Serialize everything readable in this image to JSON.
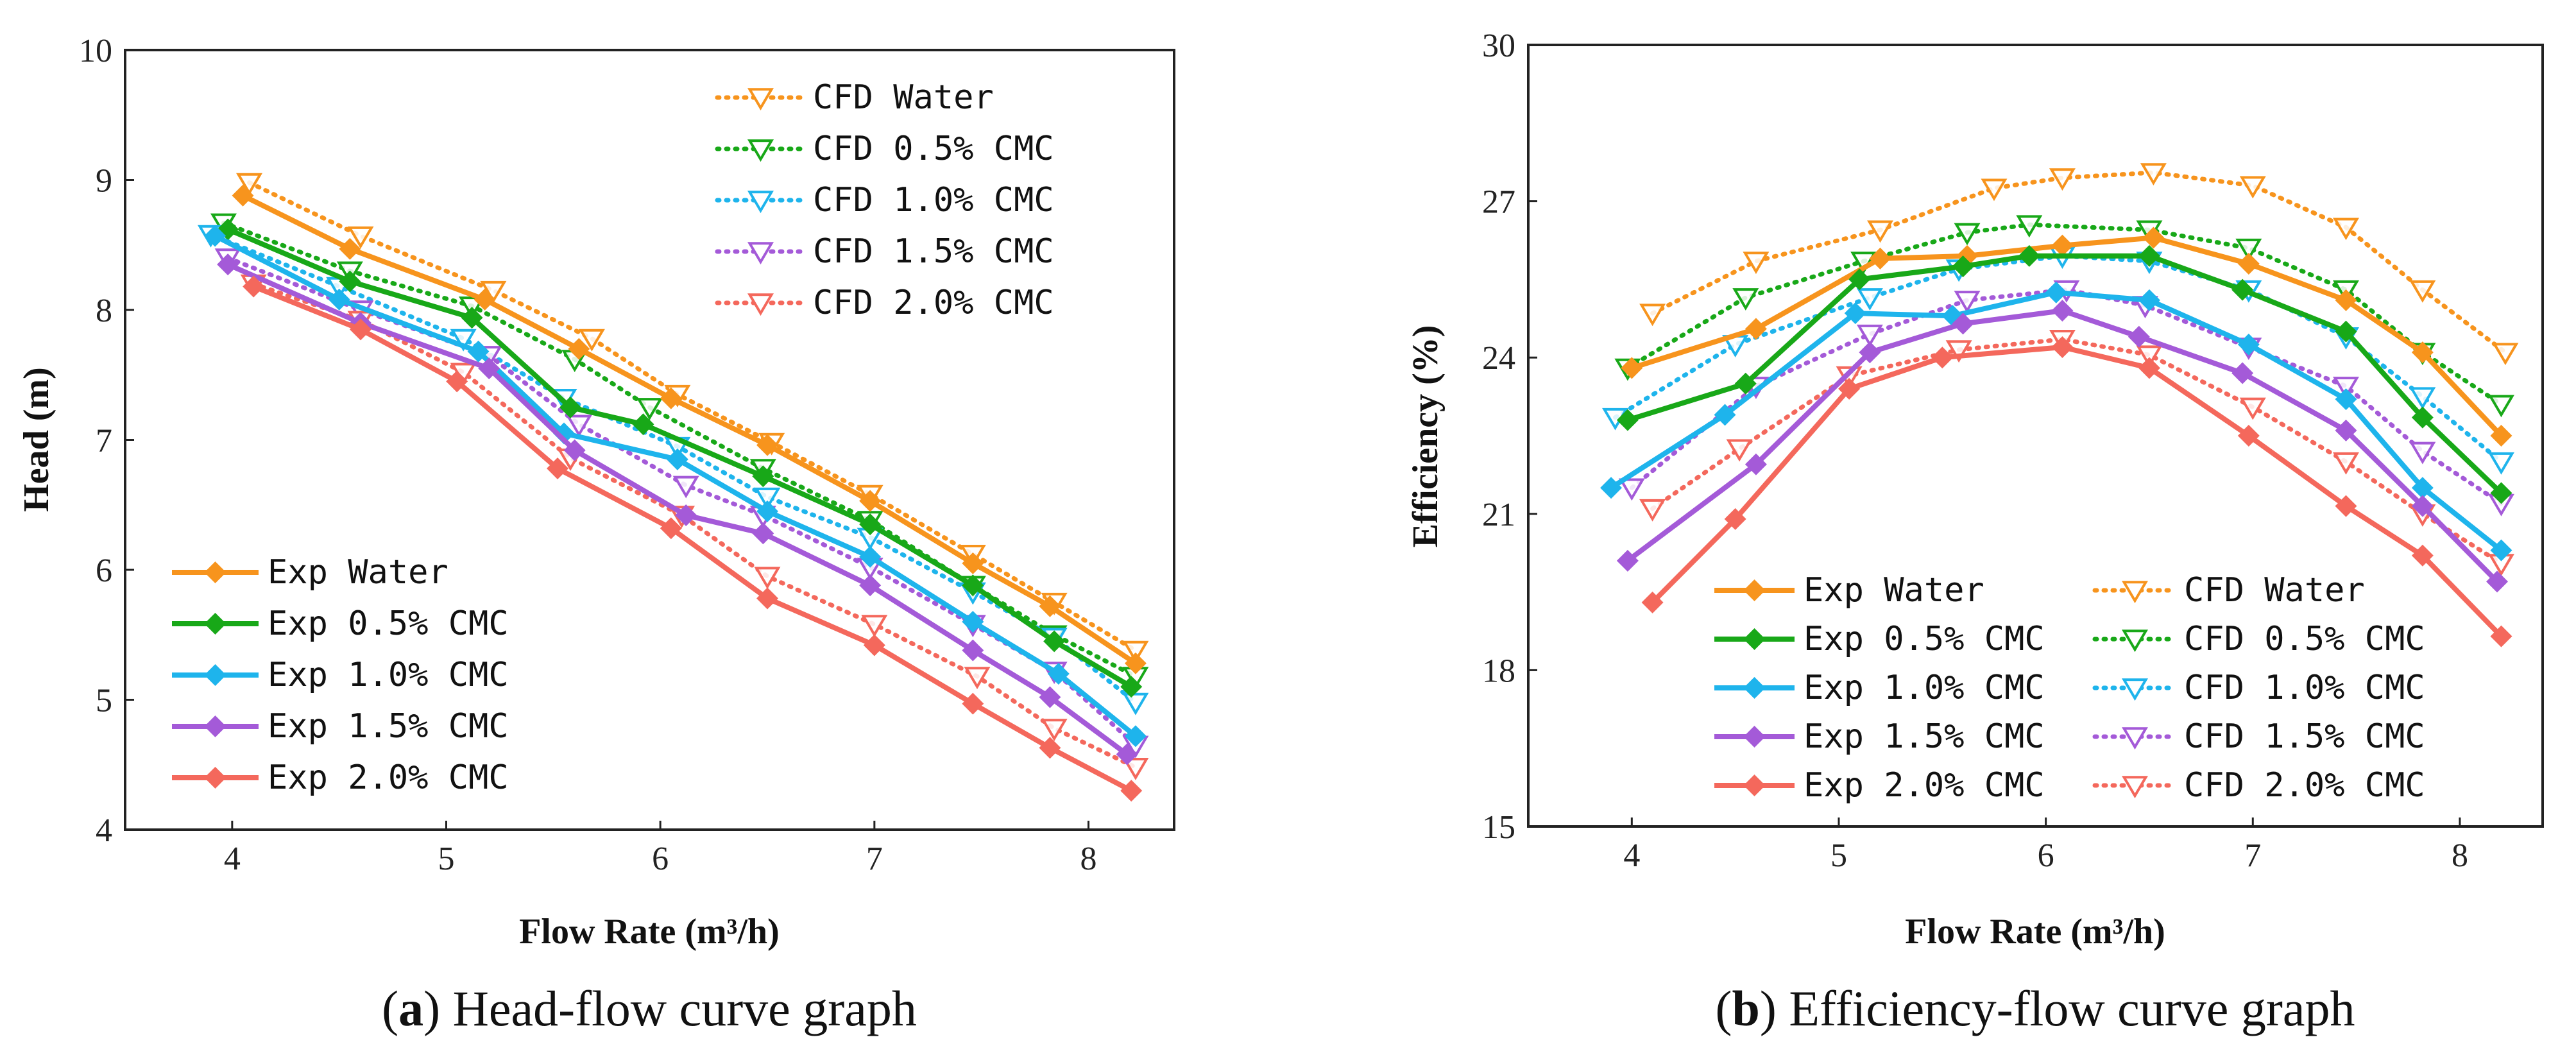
{
  "chart_data": [
    {
      "type": "line",
      "panel_label": "a",
      "caption": "Head-flow curve graph",
      "xlabel": "Flow Rate (m³/h)",
      "ylabel": "Head (m)",
      "xlim": [
        3.5,
        8.4
      ],
      "ylim": [
        4,
        10
      ],
      "xticks": [
        "4",
        "5",
        "6",
        "7",
        "8"
      ],
      "yticks": [
        "4",
        "5",
        "6",
        "7",
        "8",
        "9",
        "10"
      ],
      "series": [
        {
          "name": "CFD Water",
          "kind": "cfd",
          "color": "#f7941d",
          "x": [
            4.08,
            4.6,
            5.22,
            5.68,
            6.08,
            6.52,
            6.98,
            7.46,
            7.84,
            8.22
          ],
          "y": [
            8.98,
            8.57,
            8.15,
            7.78,
            7.35,
            6.98,
            6.58,
            6.12,
            5.75,
            5.38
          ]
        },
        {
          "name": "CFD 0.5% CMC",
          "kind": "cfd",
          "color": "#18a818",
          "x": [
            3.96,
            4.55,
            5.12,
            5.6,
            5.95,
            6.48,
            6.98,
            7.46,
            7.84,
            8.22
          ],
          "y": [
            8.67,
            8.3,
            8.03,
            7.62,
            7.25,
            6.78,
            6.38,
            5.88,
            5.5,
            5.18
          ]
        },
        {
          "name": "CFD 1.0% CMC",
          "kind": "cfd",
          "color": "#1eb4ec",
          "x": [
            3.9,
            4.5,
            5.08,
            5.55,
            6.08,
            6.5,
            6.98,
            7.46,
            7.84,
            8.22
          ],
          "y": [
            8.58,
            8.18,
            7.78,
            7.32,
            6.95,
            6.56,
            6.25,
            5.83,
            5.48,
            4.98
          ]
        },
        {
          "name": "CFD 1.5% CMC",
          "kind": "cfd",
          "color": "#a45ad8",
          "x": [
            3.98,
            4.6,
            5.2,
            5.62,
            6.12,
            6.48,
            6.98,
            7.46,
            7.84,
            8.22
          ],
          "y": [
            8.4,
            8.0,
            7.65,
            7.12,
            6.65,
            6.42,
            6.02,
            5.58,
            5.22,
            4.65
          ]
        },
        {
          "name": "CFD 2.0% CMC",
          "kind": "cfd",
          "color": "#f4685c",
          "x": [
            4.1,
            4.6,
            5.08,
            5.58,
            6.1,
            6.5,
            7.0,
            7.48,
            7.84,
            8.22
          ],
          "y": [
            8.2,
            7.92,
            7.52,
            6.86,
            6.42,
            5.95,
            5.58,
            5.18,
            4.78,
            4.48
          ]
        },
        {
          "name": "Exp Water",
          "kind": "exp",
          "color": "#f7941d",
          "x": [
            4.05,
            4.55,
            5.18,
            5.62,
            6.05,
            6.5,
            6.98,
            7.46,
            7.82,
            8.22
          ],
          "y": [
            8.88,
            8.47,
            8.08,
            7.7,
            7.32,
            6.96,
            6.53,
            6.05,
            5.72,
            5.28
          ]
        },
        {
          "name": "Exp 0.5% CMC",
          "kind": "exp",
          "color": "#18a818",
          "x": [
            3.98,
            4.55,
            5.12,
            5.58,
            5.92,
            6.48,
            6.98,
            7.46,
            7.84,
            8.2
          ],
          "y": [
            8.62,
            8.22,
            7.94,
            7.25,
            7.12,
            6.72,
            6.35,
            5.88,
            5.45,
            5.1
          ]
        },
        {
          "name": "Exp 1.0% CMC",
          "kind": "exp",
          "color": "#1eb4ec",
          "x": [
            3.92,
            4.5,
            5.15,
            5.55,
            6.08,
            6.5,
            6.98,
            7.46,
            7.86,
            8.22
          ],
          "y": [
            8.57,
            8.08,
            7.68,
            7.05,
            6.85,
            6.45,
            6.1,
            5.6,
            5.2,
            4.72
          ]
        },
        {
          "name": "Exp 1.5% CMC",
          "kind": "exp",
          "color": "#a45ad8",
          "x": [
            3.98,
            4.6,
            5.2,
            5.6,
            6.12,
            6.48,
            6.98,
            7.46,
            7.82,
            8.18
          ],
          "y": [
            8.35,
            7.9,
            7.55,
            6.92,
            6.42,
            6.28,
            5.88,
            5.38,
            5.02,
            4.58
          ]
        },
        {
          "name": "Exp 2.0% CMC",
          "kind": "exp",
          "color": "#f4685c",
          "x": [
            4.1,
            4.6,
            5.05,
            5.52,
            6.05,
            6.5,
            7.0,
            7.46,
            7.82,
            8.2
          ],
          "y": [
            8.18,
            7.85,
            7.45,
            6.78,
            6.32,
            5.78,
            5.42,
            4.97,
            4.63,
            4.3
          ]
        }
      ]
    },
    {
      "type": "line",
      "panel_label": "b",
      "caption": "Efficiency-flow curve graph",
      "xlabel": "Flow Rate (m³/h)",
      "ylabel": "Efficiency (%)",
      "xlim": [
        3.5,
        8.4
      ],
      "ylim": [
        15,
        30
      ],
      "xticks": [
        "4",
        "5",
        "6",
        "7",
        "8"
      ],
      "yticks": [
        "15",
        "18",
        "21",
        "24",
        "27",
        "30"
      ],
      "series": [
        {
          "name": "CFD Water",
          "kind": "cfd",
          "color": "#f7941d",
          "x": [
            4.1,
            4.6,
            5.2,
            5.75,
            6.08,
            6.52,
            7.0,
            7.45,
            7.82,
            8.22
          ],
          "y": [
            24.85,
            25.85,
            26.45,
            27.25,
            27.45,
            27.55,
            27.3,
            26.5,
            25.3,
            24.1
          ]
        },
        {
          "name": "CFD 0.5% CMC",
          "kind": "cfd",
          "color": "#18a818",
          "x": [
            3.98,
            4.55,
            5.12,
            5.62,
            5.92,
            6.5,
            6.98,
            7.45,
            7.82,
            8.2
          ],
          "y": [
            23.8,
            25.15,
            25.85,
            26.4,
            26.55,
            26.45,
            26.1,
            25.3,
            24.1,
            23.1
          ]
        },
        {
          "name": "CFD 1.0% CMC",
          "kind": "cfd",
          "color": "#1eb4ec",
          "x": [
            3.92,
            4.5,
            5.15,
            5.58,
            6.08,
            6.5,
            6.98,
            7.45,
            7.82,
            8.2
          ],
          "y": [
            22.85,
            24.25,
            25.15,
            25.7,
            25.95,
            25.85,
            25.3,
            24.4,
            23.25,
            22.0
          ]
        },
        {
          "name": "CFD 1.5% CMC",
          "kind": "cfd",
          "color": "#a45ad8",
          "x": [
            4.0,
            4.6,
            5.15,
            5.62,
            6.1,
            6.48,
            6.98,
            7.45,
            7.82,
            8.2
          ],
          "y": [
            21.5,
            23.45,
            24.45,
            25.1,
            25.3,
            25.0,
            24.2,
            23.45,
            22.2,
            21.2
          ]
        },
        {
          "name": "CFD 2.0% CMC",
          "kind": "cfd",
          "color": "#f4685c",
          "x": [
            4.1,
            4.52,
            5.05,
            5.58,
            6.08,
            6.5,
            7.0,
            7.45,
            7.82,
            8.2
          ],
          "y": [
            21.1,
            22.25,
            23.65,
            24.15,
            24.35,
            24.05,
            23.05,
            22.0,
            21.0,
            20.05
          ]
        },
        {
          "name": "Exp Water",
          "kind": "exp",
          "color": "#f7941d",
          "x": [
            4.0,
            4.6,
            5.2,
            5.62,
            6.08,
            6.52,
            6.98,
            7.45,
            7.82,
            8.2
          ],
          "y": [
            23.8,
            24.55,
            25.9,
            25.95,
            26.15,
            26.3,
            25.8,
            25.1,
            24.1,
            22.5
          ]
        },
        {
          "name": "Exp 0.5% CMC",
          "kind": "exp",
          "color": "#18a818",
          "x": [
            3.98,
            4.55,
            5.1,
            5.6,
            5.92,
            6.5,
            6.95,
            7.45,
            7.82,
            8.2
          ],
          "y": [
            22.8,
            23.5,
            25.5,
            25.75,
            25.95,
            25.95,
            25.3,
            24.5,
            22.85,
            21.4
          ]
        },
        {
          "name": "Exp 1.0% CMC",
          "kind": "exp",
          "color": "#1eb4ec",
          "x": [
            3.9,
            4.45,
            5.08,
            5.55,
            6.05,
            6.5,
            6.98,
            7.45,
            7.82,
            8.2
          ],
          "y": [
            21.5,
            22.9,
            24.85,
            24.8,
            25.25,
            25.1,
            24.25,
            23.2,
            21.5,
            20.3
          ]
        },
        {
          "name": "Exp 1.5% CMC",
          "kind": "exp",
          "color": "#a45ad8",
          "x": [
            3.98,
            4.6,
            5.15,
            5.6,
            6.08,
            6.45,
            6.95,
            7.45,
            7.82,
            8.18
          ],
          "y": [
            20.1,
            21.95,
            24.1,
            24.65,
            24.9,
            24.4,
            23.7,
            22.6,
            21.15,
            19.7
          ]
        },
        {
          "name": "Exp 2.0% CMC",
          "kind": "exp",
          "color": "#f4685c",
          "x": [
            4.1,
            4.5,
            5.05,
            5.5,
            6.08,
            6.5,
            6.98,
            7.45,
            7.82,
            8.2
          ],
          "y": [
            19.3,
            20.9,
            23.4,
            24.0,
            24.2,
            23.8,
            22.5,
            21.15,
            20.2,
            18.65
          ]
        }
      ]
    }
  ]
}
